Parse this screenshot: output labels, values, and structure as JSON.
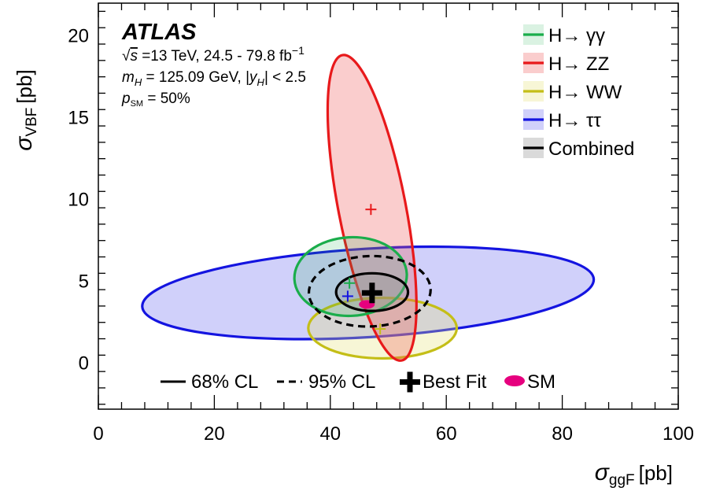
{
  "chart_data": {
    "type": "scatter",
    "xlabel_symbol": "σ",
    "xlabel_sub": "ggF",
    "xlabel_unit": "[pb]",
    "ylabel_symbol": "σ",
    "ylabel_sub": "VBF",
    "ylabel_unit": "[pb]",
    "xlim": [
      0,
      100
    ],
    "ylim": [
      -2.8,
      22
    ],
    "x_ticks": [
      0,
      20,
      40,
      60,
      80,
      100
    ],
    "y_ticks": [
      0,
      5,
      10,
      15,
      20
    ],
    "x_tick_labels": [
      "0",
      "20",
      "40",
      "60",
      "80",
      "100"
    ],
    "y_tick_labels": [
      "0",
      "5",
      "10",
      "15",
      "20"
    ],
    "annotations": {
      "experiment": "ATLAS",
      "energy_prefix": "√",
      "energy_var": "s",
      "energy_rest": " =13 TeV, 24.5 - 79.8 fb",
      "energy_sup": "−1",
      "mass_var": "m",
      "mass_sub": "H",
      "mass_rest": " = 125.09 GeV, |",
      "rap_var": "y",
      "rap_sub": "H",
      "rap_rest": "| < 2.5",
      "psm_var": "p",
      "psm_sub": "SM",
      "psm_rest": " = 50%"
    },
    "series": [
      {
        "name": "H→ γγ",
        "color": "#1aad4b",
        "fill": "rgba(26,173,75,0.16)",
        "best_fit": [
          43.3,
          4.9
        ],
        "contour_68": {
          "cx": 43.5,
          "cy": 5.3,
          "a": 9.7,
          "b": 2.4,
          "angle_deg": -3
        }
      },
      {
        "name": "H→ ZZ",
        "color": "#e8191b",
        "fill": "rgba(240,90,90,0.30)",
        "best_fit": [
          47.0,
          9.4
        ],
        "contour_68": {
          "cx": 47.2,
          "cy": 9.5,
          "a": 5.8,
          "b": 9.5,
          "angle_deg": -11
        }
      },
      {
        "name": "H→ WW",
        "color": "#c4be17",
        "fill": "rgba(230,225,120,0.30)",
        "best_fit": [
          48.6,
          2.1
        ],
        "contour_68": {
          "cx": 49.0,
          "cy": 2.15,
          "a": 12.8,
          "b": 1.85,
          "angle_deg": 0
        }
      },
      {
        "name": "H→ ττ",
        "color": "#1414e0",
        "fill": "rgba(120,120,240,0.35)",
        "best_fit": [
          43.0,
          4.1
        ],
        "contour_68": {
          "cx": 46.5,
          "cy": 4.3,
          "a": 39.0,
          "b": 2.7,
          "angle_deg": -3.5
        }
      },
      {
        "name": "Combined",
        "color": "#000000",
        "fill": "rgba(150,150,150,0.35)",
        "best_fit": [
          47.2,
          4.3
        ],
        "contour_68": {
          "cx": 47.2,
          "cy": 4.35,
          "a": 6.2,
          "b": 1.15,
          "angle_deg": 0
        },
        "contour_95": {
          "cx": 46.8,
          "cy": 4.4,
          "a": 10.5,
          "b": 2.15,
          "angle_deg": -2
        }
      }
    ],
    "sm_point": [
      46.3,
      3.6
    ],
    "legend_position": "top-right",
    "bottom_legend": [
      {
        "key": "cl68",
        "label": "68% CL"
      },
      {
        "key": "cl95",
        "label": "95% CL"
      },
      {
        "key": "bestfit",
        "label": "Best Fit"
      },
      {
        "key": "sm",
        "label": "SM"
      }
    ],
    "colors": {
      "sm": "#e6007e"
    }
  }
}
